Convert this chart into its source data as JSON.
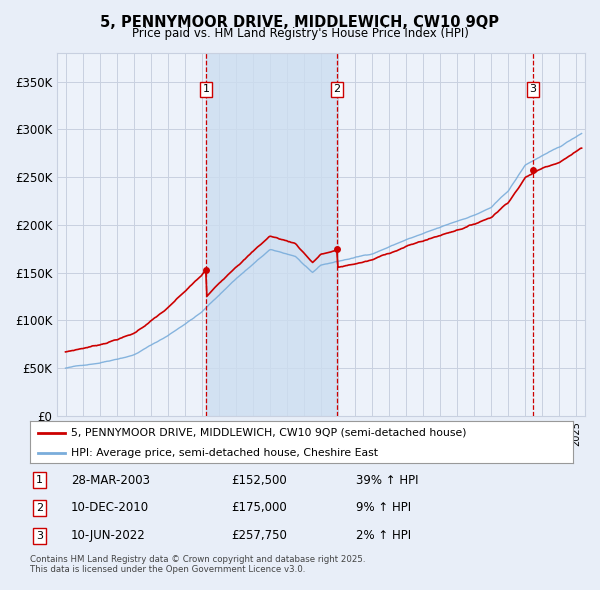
{
  "title": "5, PENNYMOOR DRIVE, MIDDLEWICH, CW10 9QP",
  "subtitle": "Price paid vs. HM Land Registry's House Price Index (HPI)",
  "legend_line1": "5, PENNYMOOR DRIVE, MIDDLEWICH, CW10 9QP (semi-detached house)",
  "legend_line2": "HPI: Average price, semi-detached house, Cheshire East",
  "footer": "Contains HM Land Registry data © Crown copyright and database right 2025.\nThis data is licensed under the Open Government Licence v3.0.",
  "sale_color": "#cc0000",
  "hpi_color": "#7aaddb",
  "background_color": "#e8eef8",
  "plot_bg_color": "#edf2fa",
  "grid_color": "#c8d0e0",
  "vline_color": "#cc0000",
  "shade_color": "#ccddf0",
  "sales": [
    {
      "date": 2003.24,
      "price": 152500,
      "label": "1"
    },
    {
      "date": 2010.94,
      "price": 175000,
      "label": "2"
    },
    {
      "date": 2022.44,
      "price": 257750,
      "label": "3"
    }
  ],
  "sale_table": [
    {
      "num": "1",
      "date": "28-MAR-2003",
      "price": "£152,500",
      "change": "39% ↑ HPI"
    },
    {
      "num": "2",
      "date": "10-DEC-2010",
      "price": "£175,000",
      "change": "9% ↑ HPI"
    },
    {
      "num": "3",
      "date": "10-JUN-2022",
      "price": "£257,750",
      "change": "2% ↑ HPI"
    }
  ],
  "ylim": [
    0,
    380000
  ],
  "xlim": [
    1994.5,
    2025.5
  ],
  "yticks": [
    0,
    50000,
    100000,
    150000,
    200000,
    250000,
    300000,
    350000
  ],
  "ytick_labels": [
    "£0",
    "£50K",
    "£100K",
    "£150K",
    "£200K",
    "£250K",
    "£300K",
    "£350K"
  ]
}
